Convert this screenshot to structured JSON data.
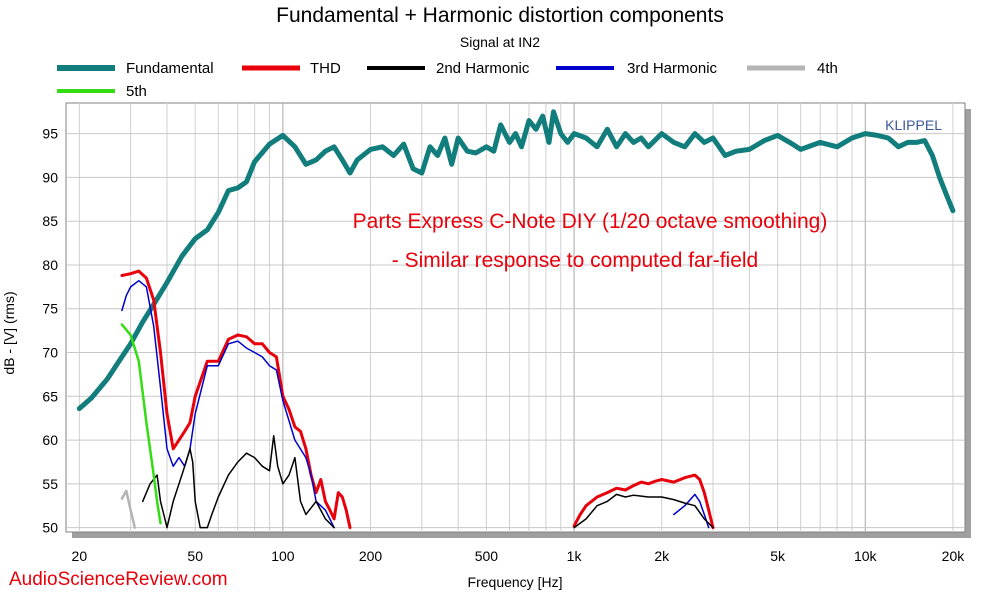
{
  "chart_data": {
    "type": "line",
    "title": "Fundamental + Harmonic distortion components",
    "subtitle": "Signal at IN2",
    "xlabel": "Frequency [Hz]",
    "ylabel": "dB - [V]  (rms)",
    "x_scale": "log",
    "xlim": [
      18,
      22000
    ],
    "ylim": [
      49.5,
      98.5
    ],
    "x_ticks": [
      {
        "value": 20,
        "label": "20"
      },
      {
        "value": 50,
        "label": "50"
      },
      {
        "value": 100,
        "label": "100"
      },
      {
        "value": 200,
        "label": "200"
      },
      {
        "value": 500,
        "label": "500"
      },
      {
        "value": 1000,
        "label": "1k"
      },
      {
        "value": 2000,
        "label": "2k"
      },
      {
        "value": 5000,
        "label": "5k"
      },
      {
        "value": 10000,
        "label": "10k"
      },
      {
        "value": 20000,
        "label": "20k"
      }
    ],
    "y_ticks": [
      50,
      55,
      60,
      65,
      70,
      75,
      80,
      85,
      90,
      95
    ],
    "grid": true,
    "legend_position": "top",
    "watermark": "KLIPPEL",
    "annotation_lines": [
      "Parts Express C-Note DIY (1/20 octave smoothing)",
      "- Similar response to computed far-field"
    ],
    "series": [
      {
        "name": "Fundamental",
        "color": "#117d7c",
        "width": 5,
        "points": [
          [
            20,
            63.6
          ],
          [
            22,
            64.8
          ],
          [
            25,
            67
          ],
          [
            28,
            69.5
          ],
          [
            30,
            71
          ],
          [
            33,
            73.5
          ],
          [
            36,
            75.5
          ],
          [
            40,
            78
          ],
          [
            45,
            81
          ],
          [
            50,
            83
          ],
          [
            55,
            84
          ],
          [
            60,
            86
          ],
          [
            65,
            88.5
          ],
          [
            70,
            88.8
          ],
          [
            75,
            89.5
          ],
          [
            80,
            91.8
          ],
          [
            90,
            93.8
          ],
          [
            100,
            94.8
          ],
          [
            110,
            93.5
          ],
          [
            120,
            91.5
          ],
          [
            130,
            92
          ],
          [
            140,
            93
          ],
          [
            150,
            93.5
          ],
          [
            160,
            92
          ],
          [
            170,
            90.5
          ],
          [
            180,
            92
          ],
          [
            200,
            93.2
          ],
          [
            220,
            93.5
          ],
          [
            240,
            92.5
          ],
          [
            260,
            93.8
          ],
          [
            280,
            91
          ],
          [
            300,
            90.5
          ],
          [
            320,
            93.5
          ],
          [
            340,
            92.5
          ],
          [
            360,
            94.5
          ],
          [
            380,
            91.5
          ],
          [
            400,
            94.5
          ],
          [
            430,
            93
          ],
          [
            460,
            92.8
          ],
          [
            500,
            93.5
          ],
          [
            530,
            93
          ],
          [
            560,
            96
          ],
          [
            600,
            94
          ],
          [
            630,
            95
          ],
          [
            660,
            93.5
          ],
          [
            700,
            96.5
          ],
          [
            740,
            95.5
          ],
          [
            780,
            97
          ],
          [
            820,
            94
          ],
          [
            850,
            97.5
          ],
          [
            900,
            95
          ],
          [
            950,
            94
          ],
          [
            1000,
            95
          ],
          [
            1100,
            94.5
          ],
          [
            1200,
            93.5
          ],
          [
            1300,
            95.5
          ],
          [
            1400,
            93.5
          ],
          [
            1500,
            95
          ],
          [
            1600,
            94
          ],
          [
            1700,
            94.5
          ],
          [
            1800,
            93.5
          ],
          [
            2000,
            95
          ],
          [
            2200,
            94
          ],
          [
            2400,
            93.5
          ],
          [
            2600,
            95
          ],
          [
            2800,
            94
          ],
          [
            3000,
            94.5
          ],
          [
            3300,
            92.5
          ],
          [
            3600,
            93
          ],
          [
            4000,
            93.2
          ],
          [
            4500,
            94.2
          ],
          [
            5000,
            94.8
          ],
          [
            5500,
            94
          ],
          [
            6000,
            93.2
          ],
          [
            7000,
            94
          ],
          [
            8000,
            93.5
          ],
          [
            9000,
            94.5
          ],
          [
            10000,
            95
          ],
          [
            11000,
            94.8
          ],
          [
            12000,
            94.5
          ],
          [
            13000,
            93.5
          ],
          [
            14000,
            94
          ],
          [
            15000,
            94
          ],
          [
            16000,
            94.2
          ],
          [
            17000,
            92.5
          ],
          [
            18000,
            90
          ],
          [
            19000,
            88
          ],
          [
            20000,
            86.2
          ]
        ]
      },
      {
        "name": "THD",
        "color": "#e8000b",
        "width": 3,
        "points": [
          [
            28,
            78.8
          ],
          [
            30,
            79
          ],
          [
            32,
            79.3
          ],
          [
            34,
            78.5
          ],
          [
            36,
            76
          ],
          [
            38,
            70
          ],
          [
            40,
            63
          ],
          [
            42,
            59
          ],
          [
            44,
            60
          ],
          [
            46,
            61
          ],
          [
            48,
            62
          ],
          [
            50,
            65
          ],
          [
            55,
            69
          ],
          [
            60,
            69
          ],
          [
            65,
            71.5
          ],
          [
            70,
            72
          ],
          [
            75,
            71.8
          ],
          [
            80,
            71
          ],
          [
            85,
            71
          ],
          [
            90,
            70
          ],
          [
            95,
            69.5
          ],
          [
            100,
            65
          ],
          [
            105,
            63.5
          ],
          [
            110,
            61.5
          ],
          [
            115,
            61
          ],
          [
            120,
            59
          ],
          [
            125,
            56
          ],
          [
            130,
            54
          ],
          [
            135,
            55.5
          ],
          [
            140,
            53
          ],
          [
            145,
            52
          ],
          [
            150,
            51
          ],
          [
            155,
            54
          ],
          [
            160,
            53.5
          ],
          [
            165,
            52
          ],
          [
            170,
            50
          ]
        ]
      },
      {
        "name": "THD",
        "color": "#e8000b",
        "width": 3,
        "points": [
          [
            1000,
            50.2
          ],
          [
            1050,
            51.5
          ],
          [
            1100,
            52.5
          ],
          [
            1200,
            53.5
          ],
          [
            1300,
            54
          ],
          [
            1400,
            54.5
          ],
          [
            1500,
            54.3
          ],
          [
            1600,
            54.8
          ],
          [
            1700,
            55.2
          ],
          [
            1800,
            55
          ],
          [
            1900,
            55.3
          ],
          [
            2000,
            55.5
          ],
          [
            2200,
            55.2
          ],
          [
            2400,
            55.7
          ],
          [
            2600,
            56
          ],
          [
            2700,
            55.5
          ],
          [
            2800,
            54
          ],
          [
            2900,
            52
          ],
          [
            3000,
            50
          ]
        ]
      },
      {
        "name": "3rd Harmonic",
        "color": "#0000cc",
        "width": 1.5,
        "points": [
          [
            28,
            74.8
          ],
          [
            29,
            76.5
          ],
          [
            30,
            77.5
          ],
          [
            32,
            78.2
          ],
          [
            34,
            77.5
          ],
          [
            36,
            73
          ],
          [
            38,
            66
          ],
          [
            40,
            59
          ],
          [
            42,
            57
          ],
          [
            44,
            58
          ],
          [
            46,
            57
          ],
          [
            48,
            59
          ],
          [
            50,
            63
          ],
          [
            55,
            68.5
          ],
          [
            60,
            68.5
          ],
          [
            65,
            71
          ],
          [
            70,
            71.3
          ],
          [
            75,
            70.5
          ],
          [
            80,
            70
          ],
          [
            85,
            69.5
          ],
          [
            90,
            68.5
          ],
          [
            95,
            68
          ],
          [
            100,
            64.5
          ],
          [
            110,
            60
          ],
          [
            120,
            58
          ],
          [
            125,
            56
          ],
          [
            130,
            53
          ],
          [
            140,
            52
          ],
          [
            150,
            50
          ]
        ]
      },
      {
        "name": "3rd Harmonic",
        "color": "#0000cc",
        "width": 1.5,
        "points": [
          [
            2200,
            51.5
          ],
          [
            2400,
            52.5
          ],
          [
            2600,
            53.8
          ],
          [
            2700,
            53
          ],
          [
            2800,
            51.5
          ],
          [
            2900,
            50
          ]
        ]
      },
      {
        "name": "2nd Harmonic",
        "color": "#000000",
        "width": 1.5,
        "points": [
          [
            33,
            53
          ],
          [
            35,
            55
          ],
          [
            37,
            56
          ],
          [
            38,
            53
          ],
          [
            39,
            51.5
          ],
          [
            40,
            50
          ],
          [
            42,
            53
          ],
          [
            44,
            55
          ],
          [
            46,
            57
          ],
          [
            48,
            59
          ],
          [
            49,
            57.5
          ],
          [
            50,
            53
          ],
          [
            52,
            50
          ],
          [
            55,
            50
          ],
          [
            57,
            51.5
          ],
          [
            60,
            53.5
          ],
          [
            65,
            56
          ],
          [
            70,
            57.5
          ],
          [
            75,
            58.5
          ],
          [
            80,
            58
          ],
          [
            85,
            57
          ],
          [
            90,
            56.5
          ],
          [
            93,
            60.5
          ],
          [
            96,
            57
          ],
          [
            100,
            55
          ],
          [
            105,
            56
          ],
          [
            110,
            58
          ],
          [
            115,
            53
          ],
          [
            120,
            51.5
          ],
          [
            130,
            53
          ],
          [
            140,
            51
          ],
          [
            150,
            50
          ]
        ]
      },
      {
        "name": "2nd Harmonic",
        "color": "#000000",
        "width": 1.5,
        "points": [
          [
            1000,
            50
          ],
          [
            1100,
            51
          ],
          [
            1200,
            52.5
          ],
          [
            1300,
            53
          ],
          [
            1400,
            53.8
          ],
          [
            1500,
            53.5
          ],
          [
            1600,
            53.7
          ],
          [
            1800,
            53.5
          ],
          [
            2000,
            53.5
          ],
          [
            2200,
            53.2
          ],
          [
            2400,
            52.8
          ],
          [
            2600,
            52.5
          ],
          [
            2800,
            51
          ],
          [
            3000,
            50
          ]
        ]
      },
      {
        "name": "4th",
        "color": "#b4b4b4",
        "width": 2.5,
        "points": [
          [
            28,
            53.3
          ],
          [
            29,
            54.2
          ],
          [
            30,
            52
          ],
          [
            31,
            50
          ]
        ]
      },
      {
        "name": "5th",
        "color": "#33dd11",
        "width": 2.5,
        "points": [
          [
            28,
            73.2
          ],
          [
            30,
            72
          ],
          [
            32,
            69
          ],
          [
            34,
            62
          ],
          [
            36,
            56
          ],
          [
            37,
            53
          ],
          [
            38,
            50.5
          ]
        ]
      }
    ]
  },
  "legend": [
    {
      "label": "Fundamental",
      "color": "#117d7c"
    },
    {
      "label": "THD",
      "color": "#e8000b"
    },
    {
      "label": "2nd Harmonic",
      "color": "#000000"
    },
    {
      "label": "3rd Harmonic",
      "color": "#0000cc"
    },
    {
      "label": "4th",
      "color": "#b4b4b4"
    },
    {
      "label": "5th",
      "color": "#33dd11"
    }
  ],
  "footer_brand": "AudioScienceReview.com"
}
